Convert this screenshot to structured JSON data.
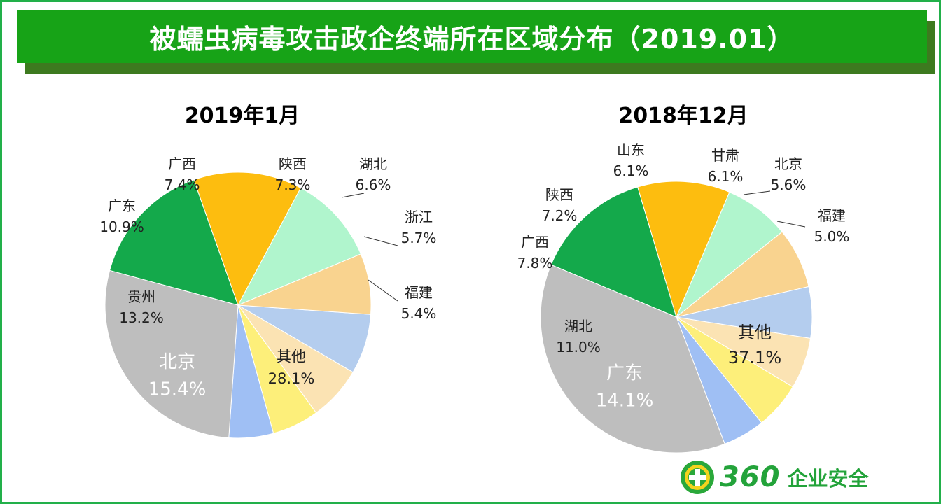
{
  "header": {
    "title": "被蠕虫病毒攻击政企终端所在区域分布（2019.01）"
  },
  "colors": {
    "frame": "#22b04a",
    "banner": "#17a317",
    "banner_shadow": "#3d7a1f"
  },
  "logo": {
    "number": "360",
    "text": "企业安全"
  },
  "chart_data": [
    {
      "type": "pie",
      "title": "2019年1月",
      "categories": [
        "陕西",
        "湖北",
        "浙江",
        "福建",
        "其他",
        "北京",
        "贵州",
        "广东",
        "广西"
      ],
      "values": [
        7.3,
        6.6,
        5.7,
        5.4,
        28.1,
        15.4,
        13.2,
        10.9,
        7.4
      ],
      "value_labels": [
        "7.3%",
        "6.6%",
        "5.7%",
        "5.4%",
        "28.1%",
        "15.4%",
        "13.2%",
        "10.9%",
        "7.4%"
      ],
      "colors": [
        "#b4cdee",
        "#fbe3b3",
        "#fdef7a",
        "#9fbff4",
        "#bebebe",
        "#14a94b",
        "#fdbd0f",
        "#b0f5cd",
        "#f9d38f"
      ],
      "label_colors": [
        "#222222",
        "#222222",
        "#222222",
        "#222222",
        "#222222",
        "#ffffff",
        "#222222",
        "#222222",
        "#222222"
      ]
    },
    {
      "type": "pie",
      "title": "2018年12月",
      "categories": [
        "甘肃",
        "北京",
        "福建",
        "其他",
        "广东",
        "湖北",
        "广西",
        "陕西",
        "山东"
      ],
      "values": [
        6.1,
        5.6,
        5.0,
        37.1,
        14.1,
        11.0,
        7.8,
        7.2,
        6.1
      ],
      "value_labels": [
        "6.1%",
        "5.6%",
        "5.0%",
        "37.1%",
        "14.1%",
        "11.0%",
        "7.8%",
        "7.2%",
        "6.1%"
      ],
      "colors": [
        "#fbe3b3",
        "#fdef7a",
        "#9fbff4",
        "#bebebe",
        "#14a94b",
        "#fdbd0f",
        "#b0f5cd",
        "#f9d38f",
        "#b4cdee"
      ],
      "label_colors": [
        "#222222",
        "#222222",
        "#222222",
        "#222222",
        "#ffffff",
        "#222222",
        "#222222",
        "#222222",
        "#222222"
      ]
    }
  ]
}
